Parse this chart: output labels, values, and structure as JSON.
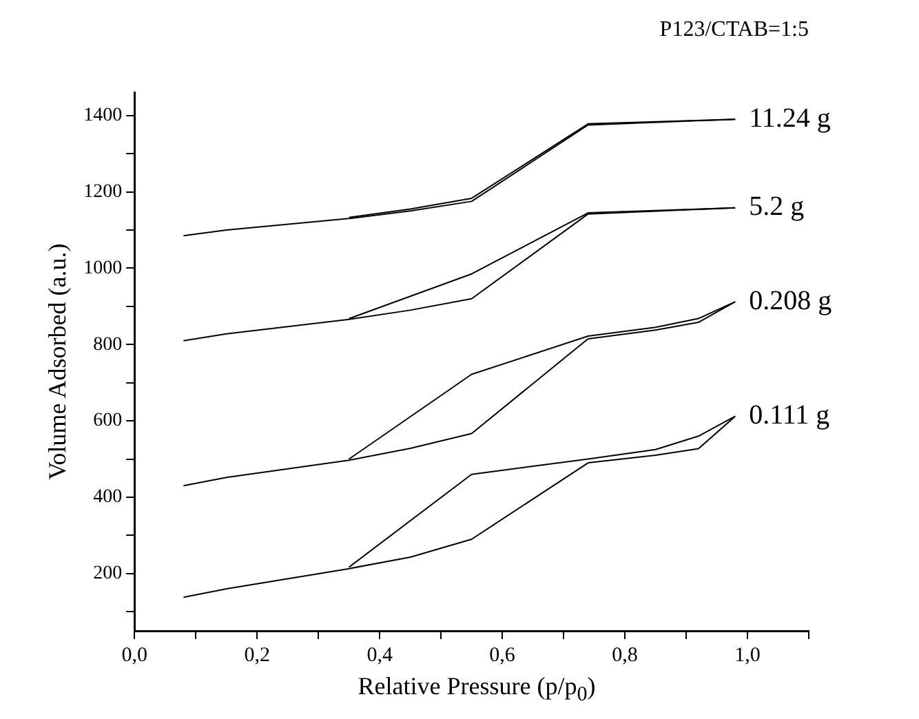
{
  "chart_data": {
    "type": "line",
    "title": "P123/CTAB=1:5",
    "xlabel": "Relative Pressure (p/p$_{0}$)",
    "ylabel": "Volume Adsorbed (a.u.)",
    "xlim": [
      0,
      1.1
    ],
    "ylim": [
      50,
      1460
    ],
    "xticks": [
      {
        "value": 0,
        "label": "0,0"
      },
      {
        "value": 0.1,
        "label": null
      },
      {
        "value": 0.2,
        "label": "0,2"
      },
      {
        "value": 0.3,
        "label": null
      },
      {
        "value": 0.4,
        "label": "0,4"
      },
      {
        "value": 0.5,
        "label": null
      },
      {
        "value": 0.6,
        "label": "0,6"
      },
      {
        "value": 0.7,
        "label": null
      },
      {
        "value": 0.8,
        "label": "0,8"
      },
      {
        "value": 0.9,
        "label": null
      },
      {
        "value": 1.0,
        "label": "1,0"
      },
      {
        "value": 1.1,
        "label": null
      }
    ],
    "yticks": [
      {
        "value": 100,
        "label": null
      },
      200,
      {
        "value": 300,
        "label": null
      },
      400,
      {
        "value": 500,
        "label": null
      },
      600,
      {
        "value": 700,
        "label": null
      },
      800,
      {
        "value": 900,
        "label": null
      },
      1000,
      {
        "value": 1100,
        "label": null
      },
      1200,
      {
        "value": 1300,
        "label": null
      },
      1400
    ],
    "grid": false,
    "legend": false,
    "marker": "none",
    "line_style": "solid",
    "series": [
      {
        "name": "11.24 g",
        "color": "#000000",
        "x": [
          0.08,
          0.15,
          0.35,
          0.45,
          0.55,
          0.74,
          0.98
        ],
        "values": [
          1085,
          1100,
          1130,
          1150,
          1175,
          1375,
          1390
        ]
      },
      {
        "color": "#000000",
        "x": [
          0.35,
          0.45,
          0.55,
          0.74,
          0.98
        ],
        "values": [
          1133,
          1155,
          1183,
          1378,
          1390
        ]
      },
      {
        "name": "5.2 g",
        "color": "#000000",
        "x": [
          0.08,
          0.15,
          0.35,
          0.45,
          0.55,
          0.74,
          0.98
        ],
        "values": [
          810,
          828,
          866,
          890,
          920,
          1142,
          1158
        ]
      },
      {
        "color": "#000000",
        "x": [
          0.35,
          0.55,
          0.74,
          0.98
        ],
        "values": [
          868,
          985,
          1145,
          1158
        ]
      },
      {
        "name": "0.208 g",
        "color": "#000000",
        "x": [
          0.08,
          0.15,
          0.35,
          0.45,
          0.55,
          0.74,
          0.85,
          0.92,
          0.98
        ],
        "values": [
          430,
          452,
          497,
          528,
          567,
          815,
          838,
          858,
          912
        ]
      },
      {
        "color": "#000000",
        "x": [
          0.35,
          0.55,
          0.74,
          0.85,
          0.92,
          0.98
        ],
        "values": [
          500,
          722,
          822,
          845,
          868,
          912
        ]
      },
      {
        "name": "0.111 g",
        "color": "#000000",
        "x": [
          0.08,
          0.15,
          0.35,
          0.45,
          0.55,
          0.74,
          0.85,
          0.92,
          0.98
        ],
        "values": [
          138,
          160,
          213,
          243,
          290,
          490,
          510,
          527,
          612
        ]
      },
      {
        "color": "#000000",
        "x": [
          0.35,
          0.55,
          0.74,
          0.85,
          0.92,
          0.98
        ],
        "values": [
          217,
          460,
          500,
          525,
          560,
          612
        ]
      }
    ]
  }
}
